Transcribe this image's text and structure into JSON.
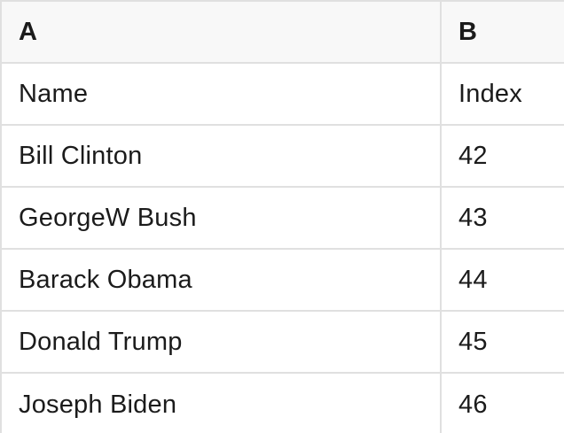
{
  "colors": {
    "header_background": "#f8f8f8",
    "grid_border": "#e0e0e0",
    "cell_background": "#ffffff",
    "text": "#1b1b1b"
  },
  "table": {
    "column_headers": [
      "A",
      "B"
    ],
    "rows": [
      {
        "a": "Name",
        "b": "Index"
      },
      {
        "a": "Bill Clinton",
        "b": "42"
      },
      {
        "a": "GeorgeW Bush",
        "b": "43"
      },
      {
        "a": "Barack Obama",
        "b": "44"
      },
      {
        "a": "Donald Trump",
        "b": "45"
      },
      {
        "a": "Joseph Biden",
        "b": "46"
      }
    ]
  }
}
